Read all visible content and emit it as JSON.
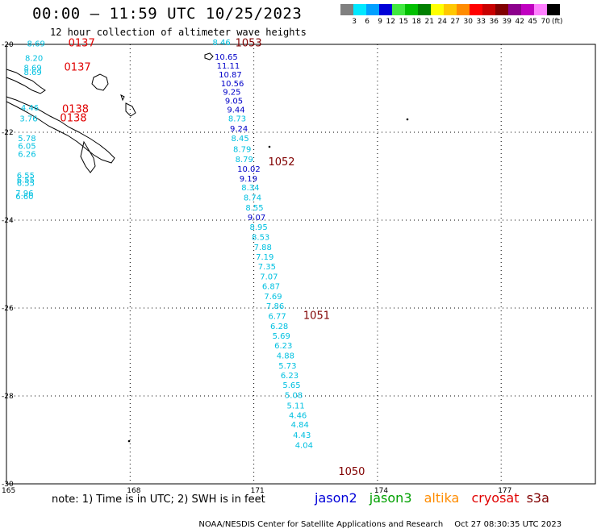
{
  "title": "00:00 – 11:59 UTC 10/25/2023",
  "subtitle": "12 hour collection of altimeter wave heights",
  "legend": {
    "colors": [
      "#808080",
      "#00e8ff",
      "#00a0ff",
      "#0000d8",
      "#40e840",
      "#00c000",
      "#008000",
      "#ffff00",
      "#ffc800",
      "#ff8c00",
      "#ff0000",
      "#c80000",
      "#800000",
      "#8c008c",
      "#c000c0",
      "#ff80ff",
      "#000000"
    ],
    "labels": [
      "3",
      "6",
      "9",
      "12",
      "15",
      "18",
      "21",
      "24",
      "27",
      "30",
      "33",
      "36",
      "39",
      "42",
      "45",
      "70"
    ],
    "unit": "(ft)"
  },
  "axes": {
    "lon_range": [
      165,
      179.3
    ],
    "lat_range": [
      -30,
      -20
    ],
    "x_ticks": [
      "165",
      "168",
      "171",
      "174",
      "177"
    ],
    "y_ticks": [
      "-20",
      "-22",
      "-24",
      "-26",
      "-28",
      "-30"
    ],
    "grid": "dotted"
  },
  "colors": {
    "jason3": "#00c0e0",
    "jason2_dark": "#0000c8",
    "cryosat": "#e00000",
    "s3a": "#800000",
    "time_label": "#800000",
    "altika": "#ff8c00",
    "jason3_legend": "#00a000",
    "coast": "#000000"
  },
  "track_main": {
    "times": [
      {
        "label": "1053",
        "lat": -20.05,
        "lon": 170.55
      },
      {
        "label": "1052",
        "lat": -22.75,
        "lon": 171.35
      },
      {
        "label": "1051",
        "lat": -26.25,
        "lon": 172.2
      },
      {
        "label": "1050",
        "lat": -29.8,
        "lon": 173.05
      }
    ],
    "points": [
      {
        "v": "8.46",
        "lat": -20.02,
        "lon": 170.0,
        "c": "jason3"
      },
      {
        "v": "10.65",
        "lat": -20.35,
        "lon": 170.05,
        "c": "jason2_dark"
      },
      {
        "v": "11.11",
        "lat": -20.55,
        "lon": 170.1,
        "c": "jason2_dark"
      },
      {
        "v": "10.87",
        "lat": -20.75,
        "lon": 170.15,
        "c": "jason2_dark"
      },
      {
        "v": "10.56",
        "lat": -20.95,
        "lon": 170.2,
        "c": "jason2_dark"
      },
      {
        "v": "9.25",
        "lat": -21.15,
        "lon": 170.25,
        "c": "jason2_dark"
      },
      {
        "v": "9.05",
        "lat": -21.35,
        "lon": 170.3,
        "c": "jason2_dark"
      },
      {
        "v": "9.44",
        "lat": -21.55,
        "lon": 170.35,
        "c": "jason2_dark"
      },
      {
        "v": "8.73",
        "lat": -21.75,
        "lon": 170.38,
        "c": "jason3"
      },
      {
        "v": "9.24",
        "lat": -21.98,
        "lon": 170.42,
        "c": "jason2_dark"
      },
      {
        "v": "8.45",
        "lat": -22.2,
        "lon": 170.45,
        "c": "jason3"
      },
      {
        "v": "8.79",
        "lat": -22.45,
        "lon": 170.5,
        "c": "jason3"
      },
      {
        "v": "8.79",
        "lat": -22.68,
        "lon": 170.55,
        "c": "jason3"
      },
      {
        "v": "10.02",
        "lat": -22.9,
        "lon": 170.6,
        "c": "jason2_dark"
      },
      {
        "v": "9.19",
        "lat": -23.12,
        "lon": 170.65,
        "c": "jason2_dark"
      },
      {
        "v": "8.34",
        "lat": -23.32,
        "lon": 170.7,
        "c": "jason3"
      },
      {
        "v": "8.74",
        "lat": -23.55,
        "lon": 170.75,
        "c": "jason3"
      },
      {
        "v": "8.55",
        "lat": -23.78,
        "lon": 170.8,
        "c": "jason3"
      },
      {
        "v": "9.07",
        "lat": -24.0,
        "lon": 170.85,
        "c": "jason2_dark"
      },
      {
        "v": "8.95",
        "lat": -24.22,
        "lon": 170.9,
        "c": "jason3"
      },
      {
        "v": "8.53",
        "lat": -24.45,
        "lon": 170.95,
        "c": "jason3"
      },
      {
        "v": "7.88",
        "lat": -24.68,
        "lon": 171.0,
        "c": "jason3"
      },
      {
        "v": "7.19",
        "lat": -24.9,
        "lon": 171.05,
        "c": "jason3"
      },
      {
        "v": "7.35",
        "lat": -25.12,
        "lon": 171.1,
        "c": "jason3"
      },
      {
        "v": "7.07",
        "lat": -25.35,
        "lon": 171.15,
        "c": "jason3"
      },
      {
        "v": "6.87",
        "lat": -25.57,
        "lon": 171.2,
        "c": "jason3"
      },
      {
        "v": "7.69",
        "lat": -25.8,
        "lon": 171.25,
        "c": "jason3"
      },
      {
        "v": "7.86",
        "lat": -26.02,
        "lon": 171.3,
        "c": "jason3"
      },
      {
        "v": "6.77",
        "lat": -26.25,
        "lon": 171.35,
        "c": "jason3"
      },
      {
        "v": "6.28",
        "lat": -26.48,
        "lon": 171.4,
        "c": "jason3"
      },
      {
        "v": "5.69",
        "lat": -26.7,
        "lon": 171.45,
        "c": "jason3"
      },
      {
        "v": "6.23",
        "lat": -26.92,
        "lon": 171.5,
        "c": "jason3"
      },
      {
        "v": "4.88",
        "lat": -27.15,
        "lon": 171.55,
        "c": "jason3"
      },
      {
        "v": "5.73",
        "lat": -27.38,
        "lon": 171.6,
        "c": "jason3"
      },
      {
        "v": "6.23",
        "lat": -27.6,
        "lon": 171.65,
        "c": "jason3"
      },
      {
        "v": "5.65",
        "lat": -27.82,
        "lon": 171.7,
        "c": "jason3"
      },
      {
        "v": "5.08",
        "lat": -28.05,
        "lon": 171.75,
        "c": "jason3"
      },
      {
        "v": "5.11",
        "lat": -28.28,
        "lon": 171.8,
        "c": "jason3"
      },
      {
        "v": "4.46",
        "lat": -28.5,
        "lon": 171.85,
        "c": "jason3"
      },
      {
        "v": "4.84",
        "lat": -28.72,
        "lon": 171.9,
        "c": "jason3"
      },
      {
        "v": "4.43",
        "lat": -28.95,
        "lon": 171.95,
        "c": "jason3"
      },
      {
        "v": "4.04",
        "lat": -29.18,
        "lon": 172.0,
        "c": "jason3"
      }
    ]
  },
  "track_west": {
    "times": [
      {
        "label": "0137",
        "lat": -20.05,
        "lon": 166.5
      },
      {
        "label": "0137",
        "lat": -20.6,
        "lon": 166.4
      },
      {
        "label": "0138",
        "lat": -21.55,
        "lon": 166.35
      },
      {
        "label": "0138",
        "lat": -21.75,
        "lon": 166.3
      }
    ],
    "points": [
      {
        "v": "8.69",
        "lat": -20.05,
        "lon": 165.5
      },
      {
        "v": "8.20",
        "lat": -20.38,
        "lon": 165.45
      },
      {
        "v": "8.69",
        "lat": -20.6,
        "lon": 165.42
      },
      {
        "v": "8.69",
        "lat": -20.7,
        "lon": 165.42
      },
      {
        "v": "4.46",
        "lat": -21.5,
        "lon": 165.35
      },
      {
        "v": "3.76",
        "lat": -21.75,
        "lon": 165.32
      },
      {
        "v": "5.78",
        "lat": -22.2,
        "lon": 165.28
      },
      {
        "v": "6.05",
        "lat": -22.38,
        "lon": 165.28
      },
      {
        "v": "6.26",
        "lat": -22.56,
        "lon": 165.28
      },
      {
        "v": "6.55",
        "lat": -23.05,
        "lon": 165.25
      },
      {
        "v": "6.55",
        "lat": -23.15,
        "lon": 165.25
      },
      {
        "v": "6.55",
        "lat": -23.22,
        "lon": 165.25
      },
      {
        "v": "7.96",
        "lat": -23.45,
        "lon": 165.22
      },
      {
        "v": "6.60",
        "lat": -23.52,
        "lon": 165.22
      }
    ]
  },
  "note": "note: 1) Time is in UTC; 2) SWH is in feet",
  "missions": [
    "jason2",
    "jason3",
    "altika",
    "cryosat",
    "s3a"
  ],
  "footer": {
    "credit": "NOAA/NESDIS Center for Satellite Applications and Research",
    "timestamp": "Oct 27 08:30:35 UTC 2023"
  }
}
